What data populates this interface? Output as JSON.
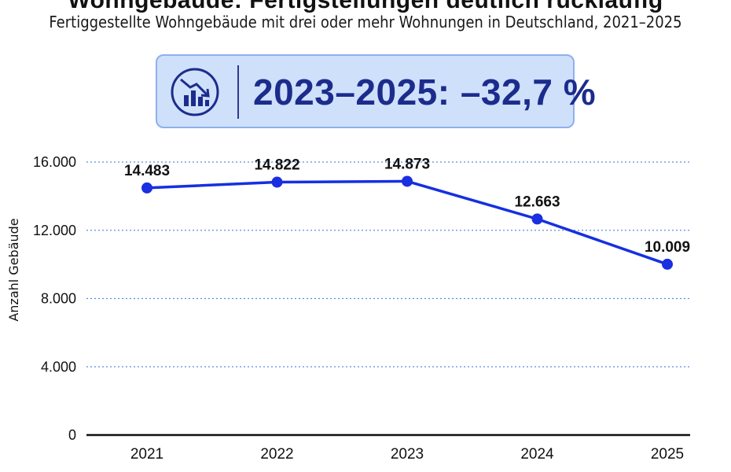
{
  "header": {
    "title_cut": "Wohngebäude: Fertigstellungen deutlich rückläufig",
    "subtitle": "Fertiggestellte Wohngebäude mit drei oder mehr Wohnungen in Deutschland, 2021–2025"
  },
  "kpi": {
    "icon": "declining-bar-chart-icon",
    "value": "2023–2025: –32,7 %"
  },
  "colors": {
    "line": "#1530e0",
    "marker": "#1a2fe0",
    "kpi_background": "#cfe0fb",
    "kpi_text": "#1c2c8c",
    "grid": "#5b8de0"
  },
  "chart_data": {
    "type": "line",
    "x": [
      "2021",
      "2022",
      "2023",
      "2024",
      "2025"
    ],
    "series": [
      {
        "values": [
          14483,
          14822,
          14873,
          12663,
          10009
        ],
        "labels": [
          "14.483",
          "14.822",
          "14.873",
          "12.663",
          "10.009"
        ]
      }
    ],
    "ylabel": "Anzahl Gebäude",
    "xlabel": "",
    "ylim": [
      0,
      16000
    ],
    "yticks": [
      0,
      4000,
      8000,
      12000,
      16000
    ],
    "ytick_labels": [
      "0",
      "4.000",
      "8.000",
      "12.000",
      "16.000"
    ],
    "grid": "horizontal dotted",
    "legend": "none"
  }
}
